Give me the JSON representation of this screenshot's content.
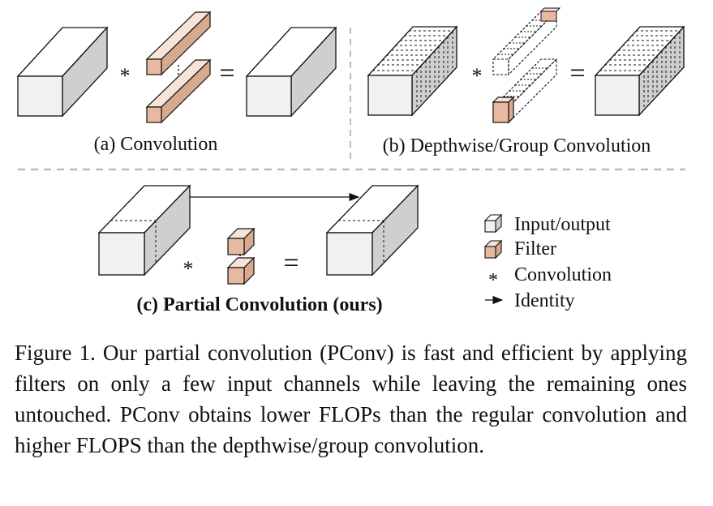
{
  "panels": {
    "a_label": "(a) Convolution",
    "b_label": "(b) Depthwise/Group Convolution",
    "c_label": "(c) Partial Convolution (ours)"
  },
  "symbols": {
    "star": "*",
    "equals": "="
  },
  "legend": {
    "input_output": "Input/output",
    "filter": "Filter",
    "convolution": "Convolution",
    "identity": "Identity"
  },
  "caption": "Figure 1. Our partial convolution (PConv) is fast and efficient by applying filters on only a few input channels while leaving the remaining ones untouched. PConv obtains lower FLOPs than the regular convolution and higher FLOPS than the depthwise/group convolution.",
  "colors": {
    "io_front": "#f1f1f1",
    "io_top": "#ffffff",
    "io_side": "#cfcfcf",
    "filter_front": "#e6b9a0",
    "filter_top": "#f7e3d7",
    "filter_side": "#d8a98f",
    "divider": "#bbbbbb"
  }
}
